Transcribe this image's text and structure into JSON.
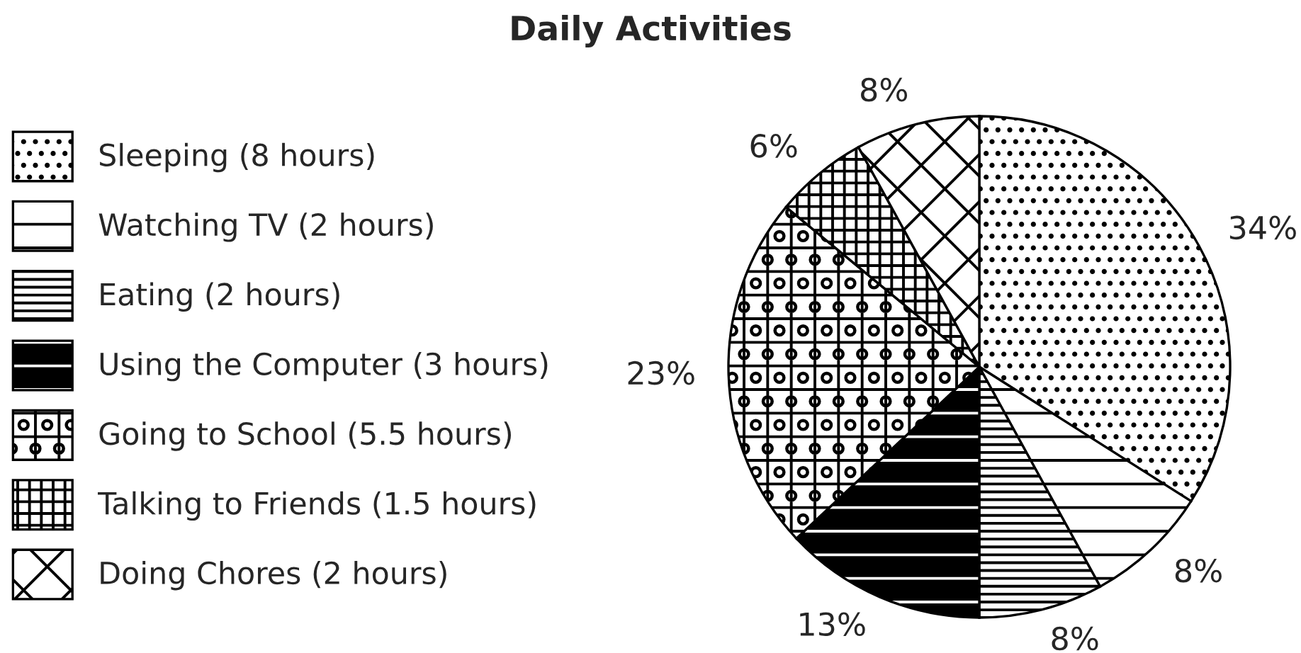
{
  "chart_data": {
    "type": "pie",
    "title": "Daily Activities",
    "categories": [
      "Sleeping (8 hours)",
      "Watching TV (2 hours)",
      "Eating (2 hours)",
      "Using the Computer (3 hours)",
      "Going to School (5.5 hours)",
      "Talking to Friends (1.5 hours)",
      "Doing Chores (2 hours)"
    ],
    "values": [
      34,
      8,
      8,
      13,
      23,
      6,
      8
    ],
    "colors": [
      "#000000",
      "#000000",
      "#000000",
      "#000000",
      "#000000",
      "#000000",
      "#000000"
    ],
    "value_labels": [
      "34%",
      "8%",
      "8%",
      "13%",
      "23%",
      "6%",
      "8%"
    ],
    "legend": "left"
  }
}
